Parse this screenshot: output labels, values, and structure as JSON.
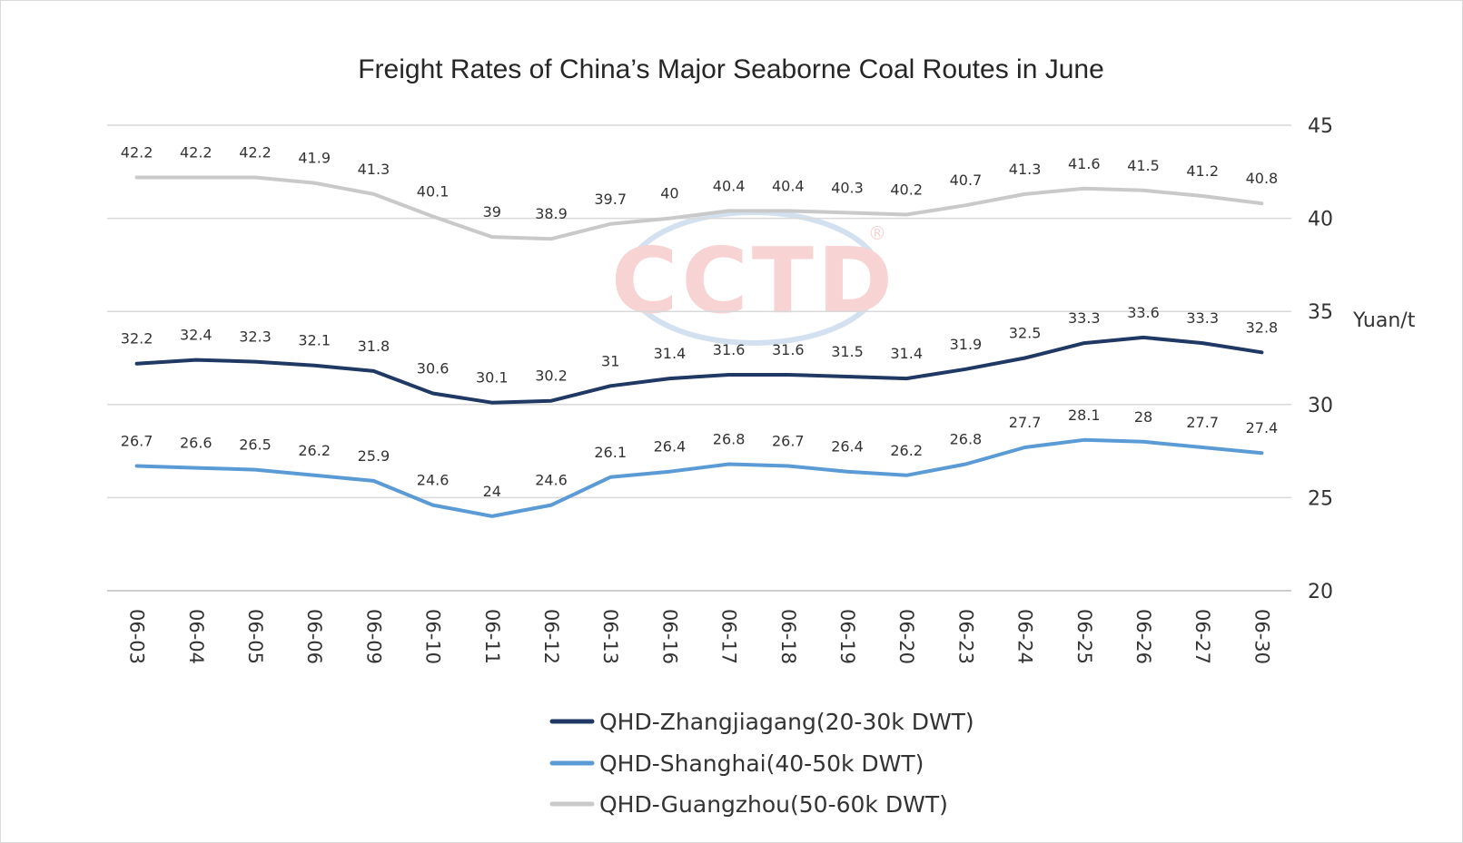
{
  "chart_data": {
    "type": "line",
    "title": "Freight Rates of China’s Major Seaborne Coal Routes in June",
    "ylabel": "Yuan/t",
    "ylim": [
      20,
      45
    ],
    "yticks": [
      20,
      25,
      30,
      35,
      40,
      45
    ],
    "y_axis_side": "right",
    "grid": true,
    "legend_position": "bottom",
    "categories": [
      "06-03",
      "06-04",
      "06-05",
      "06-06",
      "06-09",
      "06-10",
      "06-11",
      "06-12",
      "06-13",
      "06-16",
      "06-17",
      "06-18",
      "06-19",
      "06-20",
      "06-23",
      "06-24",
      "06-25",
      "06-26",
      "06-27",
      "06-30"
    ],
    "series": [
      {
        "name": "QHD-Zhangjiagang(20-30k DWT)",
        "color": "#1f3864",
        "values": [
          32.2,
          32.4,
          32.3,
          32.1,
          31.8,
          30.6,
          30.1,
          30.2,
          31,
          31.4,
          31.6,
          31.6,
          31.5,
          31.4,
          31.9,
          32.5,
          33.3,
          33.6,
          33.3,
          32.8
        ]
      },
      {
        "name": "QHD-Shanghai(40-50k DWT)",
        "color": "#5b9bd5",
        "values": [
          26.7,
          26.6,
          26.5,
          26.2,
          25.9,
          24.6,
          24,
          24.6,
          26.1,
          26.4,
          26.8,
          26.7,
          26.4,
          26.2,
          26.8,
          27.7,
          28.1,
          28,
          27.7,
          27.4
        ]
      },
      {
        "name": "QHD-Guangzhou(50-60k DWT)",
        "color": "#c9c9c9",
        "values": [
          42.2,
          42.2,
          42.2,
          41.9,
          41.3,
          40.1,
          39,
          38.9,
          39.7,
          40,
          40.4,
          40.4,
          40.3,
          40.2,
          40.7,
          41.3,
          41.6,
          41.5,
          41.2,
          40.8
        ]
      }
    ]
  },
  "watermark": {
    "text": "CCTD",
    "registered_mark": "®",
    "colors": [
      "#f2b6b6",
      "#b7cde6"
    ]
  }
}
